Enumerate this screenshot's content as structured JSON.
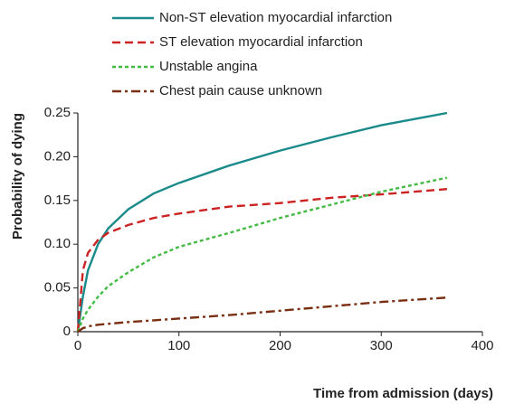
{
  "chart_data": {
    "type": "line",
    "x_label": "Time from admission (days)",
    "y_label": "Probability of dying",
    "x": [
      0,
      5,
      10,
      20,
      30,
      50,
      75,
      100,
      150,
      200,
      250,
      300,
      365
    ],
    "series": [
      {
        "name": "Non-ST elevation myocardial infarction",
        "color": "#1a8a8a",
        "dash": "solid",
        "values": [
          0,
          0.04,
          0.07,
          0.1,
          0.118,
          0.14,
          0.158,
          0.17,
          0.19,
          0.207,
          0.222,
          0.236,
          0.25
        ]
      },
      {
        "name": "ST elevation myocardial infarction",
        "color": "#cc2222",
        "dash": "dashed",
        "values": [
          0,
          0.07,
          0.09,
          0.105,
          0.113,
          0.122,
          0.13,
          0.135,
          0.143,
          0.147,
          0.153,
          0.157,
          0.163
        ]
      },
      {
        "name": "Unstable angina",
        "color": "#44bb44",
        "dash": "dotted",
        "values": [
          0,
          0.015,
          0.025,
          0.04,
          0.052,
          0.068,
          0.085,
          0.097,
          0.113,
          0.13,
          0.145,
          0.16,
          0.176
        ]
      },
      {
        "name": "Chest pain cause unknown",
        "color": "#7a2e12",
        "dash": "dashdot",
        "values": [
          0,
          0.004,
          0.006,
          0.008,
          0.009,
          0.011,
          0.013,
          0.015,
          0.019,
          0.024,
          0.029,
          0.034,
          0.039
        ]
      }
    ],
    "xlim": [
      0,
      400
    ],
    "xticks": [
      0,
      100,
      200,
      300,
      400
    ],
    "ylim": [
      0,
      0.25
    ],
    "yticks": [
      0,
      0.05,
      {
        "value": 0.1,
        "label": "0.10"
      },
      0.15,
      {
        "value": 0.2,
        "label": "0.20"
      },
      0.25
    ],
    "grid": false
  }
}
